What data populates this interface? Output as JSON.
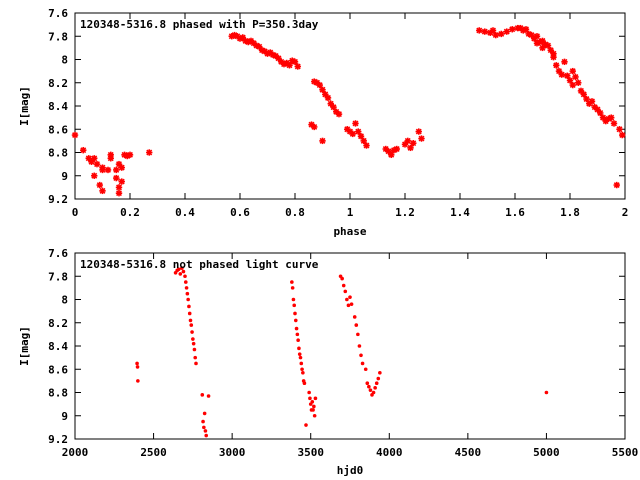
{
  "colors": {
    "series": "#ff0000",
    "axis": "#000000",
    "background": "#ffffff"
  },
  "chart_data": [
    {
      "type": "scatter",
      "title": "120348-5316.8 phased with P=350.3day",
      "xlabel": "phase",
      "ylabel": "I[mag]",
      "xlim": [
        0,
        2
      ],
      "ylim": [
        7.6,
        9.2
      ],
      "y_inverted": true,
      "grid": false,
      "legend": "none",
      "xticks": [
        "0",
        "0.2",
        "0.4",
        "0.6",
        "0.8",
        "1",
        "1.2",
        "1.4",
        "1.6",
        "1.8",
        "2"
      ],
      "yticks": [
        "7.6",
        "7.8",
        "8",
        "8.2",
        "8.4",
        "8.6",
        "8.8",
        "9",
        "9.2"
      ],
      "xtick_values": [
        0,
        0.2,
        0.4,
        0.6,
        0.8,
        1,
        1.2,
        1.4,
        1.6,
        1.8,
        2
      ],
      "ytick_values": [
        7.6,
        7.8,
        8,
        8.2,
        8.4,
        8.6,
        8.8,
        9,
        9.2
      ],
      "marker": "star",
      "points": [
        [
          0.0,
          8.65
        ],
        [
          0.03,
          8.78
        ],
        [
          0.05,
          8.85
        ],
        [
          0.06,
          8.88
        ],
        [
          0.07,
          9.0
        ],
        [
          0.07,
          8.85
        ],
        [
          0.08,
          8.9
        ],
        [
          0.09,
          9.08
        ],
        [
          0.1,
          8.95
        ],
        [
          0.1,
          8.93
        ],
        [
          0.1,
          9.13
        ],
        [
          0.12,
          8.95
        ],
        [
          0.13,
          8.85
        ],
        [
          0.13,
          8.82
        ],
        [
          0.15,
          9.02
        ],
        [
          0.15,
          8.95
        ],
        [
          0.16,
          8.9
        ],
        [
          0.16,
          9.1
        ],
        [
          0.16,
          9.15
        ],
        [
          0.17,
          8.93
        ],
        [
          0.17,
          9.05
        ],
        [
          0.18,
          8.82
        ],
        [
          0.19,
          8.83
        ],
        [
          0.2,
          8.82
        ],
        [
          0.27,
          8.8
        ],
        [
          0.57,
          7.8
        ],
        [
          0.58,
          7.79
        ],
        [
          0.59,
          7.8
        ],
        [
          0.6,
          7.82
        ],
        [
          0.61,
          7.81
        ],
        [
          0.62,
          7.84
        ],
        [
          0.63,
          7.85
        ],
        [
          0.64,
          7.84
        ],
        [
          0.65,
          7.86
        ],
        [
          0.66,
          7.88
        ],
        [
          0.67,
          7.89
        ],
        [
          0.68,
          7.92
        ],
        [
          0.69,
          7.93
        ],
        [
          0.7,
          7.95
        ],
        [
          0.71,
          7.94
        ],
        [
          0.72,
          7.96
        ],
        [
          0.73,
          7.97
        ],
        [
          0.74,
          7.99
        ],
        [
          0.75,
          8.02
        ],
        [
          0.76,
          8.04
        ],
        [
          0.77,
          8.03
        ],
        [
          0.78,
          8.05
        ],
        [
          0.79,
          8.01
        ],
        [
          0.8,
          8.02
        ],
        [
          0.81,
          8.06
        ],
        [
          0.86,
          8.56
        ],
        [
          0.87,
          8.58
        ],
        [
          0.87,
          8.19
        ],
        [
          0.88,
          8.2
        ],
        [
          0.89,
          8.22
        ],
        [
          0.9,
          8.26
        ],
        [
          0.9,
          8.7
        ],
        [
          0.91,
          8.3
        ],
        [
          0.92,
          8.33
        ],
        [
          0.93,
          8.38
        ],
        [
          0.94,
          8.41
        ],
        [
          0.95,
          8.45
        ],
        [
          0.96,
          8.47
        ],
        [
          0.99,
          8.6
        ],
        [
          1.0,
          8.62
        ],
        [
          1.01,
          8.64
        ],
        [
          1.02,
          8.55
        ],
        [
          1.03,
          8.62
        ],
        [
          1.04,
          8.66
        ],
        [
          1.05,
          8.7
        ],
        [
          1.06,
          8.74
        ],
        [
          1.13,
          8.77
        ],
        [
          1.14,
          8.79
        ],
        [
          1.15,
          8.82
        ],
        [
          1.16,
          8.78
        ],
        [
          1.17,
          8.77
        ],
        [
          1.2,
          8.73
        ],
        [
          1.21,
          8.7
        ],
        [
          1.22,
          8.76
        ],
        [
          1.23,
          8.72
        ],
        [
          1.25,
          8.62
        ],
        [
          1.26,
          8.68
        ],
        [
          1.47,
          7.75
        ],
        [
          1.49,
          7.76
        ],
        [
          1.51,
          7.77
        ],
        [
          1.52,
          7.75
        ],
        [
          1.53,
          7.79
        ],
        [
          1.55,
          7.78
        ],
        [
          1.57,
          7.76
        ],
        [
          1.59,
          7.74
        ],
        [
          1.61,
          7.73
        ],
        [
          1.62,
          7.73
        ],
        [
          1.63,
          7.75
        ],
        [
          1.64,
          7.74
        ],
        [
          1.65,
          7.78
        ],
        [
          1.66,
          7.79
        ],
        [
          1.67,
          7.82
        ],
        [
          1.68,
          7.86
        ],
        [
          1.68,
          7.8
        ],
        [
          1.69,
          7.85
        ],
        [
          1.7,
          7.9
        ],
        [
          1.7,
          7.84
        ],
        [
          1.71,
          7.87
        ],
        [
          1.72,
          7.88
        ],
        [
          1.73,
          7.92
        ],
        [
          1.74,
          7.98
        ],
        [
          1.74,
          7.95
        ],
        [
          1.75,
          8.05
        ],
        [
          1.76,
          8.1
        ],
        [
          1.77,
          8.13
        ],
        [
          1.78,
          8.02
        ],
        [
          1.79,
          8.14
        ],
        [
          1.8,
          8.18
        ],
        [
          1.81,
          8.22
        ],
        [
          1.81,
          8.1
        ],
        [
          1.82,
          8.15
        ],
        [
          1.83,
          8.2
        ],
        [
          1.84,
          8.27
        ],
        [
          1.85,
          8.3
        ],
        [
          1.86,
          8.34
        ],
        [
          1.87,
          8.38
        ],
        [
          1.88,
          8.36
        ],
        [
          1.89,
          8.41
        ],
        [
          1.9,
          8.43
        ],
        [
          1.91,
          8.46
        ],
        [
          1.92,
          8.5
        ],
        [
          1.93,
          8.53
        ],
        [
          1.94,
          8.51
        ],
        [
          1.95,
          8.5
        ],
        [
          1.96,
          8.55
        ],
        [
          1.97,
          9.08
        ],
        [
          1.98,
          8.6
        ],
        [
          1.99,
          8.65
        ]
      ]
    },
    {
      "type": "scatter",
      "title": "120348-5316.8 not phased light curve",
      "xlabel": "hjd0",
      "ylabel": "I[mag]",
      "xlim": [
        2000,
        5500
      ],
      "ylim": [
        7.6,
        9.2
      ],
      "y_inverted": true,
      "grid": false,
      "legend": "none",
      "xticks": [
        "2000",
        "2500",
        "3000",
        "3500",
        "4000",
        "4500",
        "5000",
        "5500"
      ],
      "yticks": [
        "7.6",
        "7.8",
        "8",
        "8.2",
        "8.4",
        "8.6",
        "8.8",
        "9",
        "9.2"
      ],
      "xtick_values": [
        2000,
        2500,
        3000,
        3500,
        4000,
        4500,
        5000,
        5500
      ],
      "ytick_values": [
        7.6,
        7.8,
        8,
        8.2,
        8.4,
        8.6,
        8.8,
        9,
        9.2
      ],
      "marker": "dot",
      "points": [
        [
          2395,
          8.55
        ],
        [
          2398,
          8.58
        ],
        [
          2400,
          8.7
        ],
        [
          2640,
          7.77
        ],
        [
          2650,
          7.75
        ],
        [
          2660,
          7.74
        ],
        [
          2670,
          7.78
        ],
        [
          2680,
          7.73
        ],
        [
          2690,
          7.76
        ],
        [
          2700,
          7.8
        ],
        [
          2705,
          7.85
        ],
        [
          2710,
          7.9
        ],
        [
          2715,
          7.95
        ],
        [
          2720,
          8.0
        ],
        [
          2725,
          8.06
        ],
        [
          2730,
          8.12
        ],
        [
          2735,
          8.18
        ],
        [
          2740,
          8.22
        ],
        [
          2745,
          8.28
        ],
        [
          2750,
          8.34
        ],
        [
          2755,
          8.38
        ],
        [
          2760,
          8.43
        ],
        [
          2765,
          8.5
        ],
        [
          2770,
          8.55
        ],
        [
          2810,
          8.82
        ],
        [
          2815,
          9.05
        ],
        [
          2820,
          9.1
        ],
        [
          2825,
          8.98
        ],
        [
          2830,
          9.13
        ],
        [
          2835,
          9.17
        ],
        [
          2850,
          8.83
        ],
        [
          3380,
          7.85
        ],
        [
          3385,
          7.9
        ],
        [
          3390,
          8.0
        ],
        [
          3395,
          8.05
        ],
        [
          3400,
          8.12
        ],
        [
          3405,
          8.18
        ],
        [
          3410,
          8.25
        ],
        [
          3415,
          8.3
        ],
        [
          3420,
          8.35
        ],
        [
          3425,
          8.42
        ],
        [
          3430,
          8.47
        ],
        [
          3435,
          8.5
        ],
        [
          3440,
          8.55
        ],
        [
          3445,
          8.6
        ],
        [
          3450,
          8.63
        ],
        [
          3455,
          8.7
        ],
        [
          3460,
          8.72
        ],
        [
          3470,
          9.08
        ],
        [
          3490,
          8.8
        ],
        [
          3495,
          8.85
        ],
        [
          3500,
          8.9
        ],
        [
          3505,
          8.95
        ],
        [
          3510,
          8.88
        ],
        [
          3515,
          8.95
        ],
        [
          3520,
          8.92
        ],
        [
          3525,
          9.0
        ],
        [
          3530,
          8.85
        ],
        [
          3690,
          7.8
        ],
        [
          3700,
          7.82
        ],
        [
          3710,
          7.88
        ],
        [
          3720,
          7.93
        ],
        [
          3730,
          8.0
        ],
        [
          3740,
          8.05
        ],
        [
          3750,
          7.98
        ],
        [
          3760,
          8.04
        ],
        [
          3780,
          8.15
        ],
        [
          3790,
          8.22
        ],
        [
          3800,
          8.3
        ],
        [
          3810,
          8.4
        ],
        [
          3820,
          8.48
        ],
        [
          3830,
          8.55
        ],
        [
          3850,
          8.6
        ],
        [
          3860,
          8.72
        ],
        [
          3870,
          8.75
        ],
        [
          3880,
          8.78
        ],
        [
          3890,
          8.82
        ],
        [
          3900,
          8.8
        ],
        [
          3910,
          8.76
        ],
        [
          3920,
          8.72
        ],
        [
          3930,
          8.68
        ],
        [
          3940,
          8.63
        ],
        [
          5000,
          8.8
        ]
      ]
    }
  ]
}
